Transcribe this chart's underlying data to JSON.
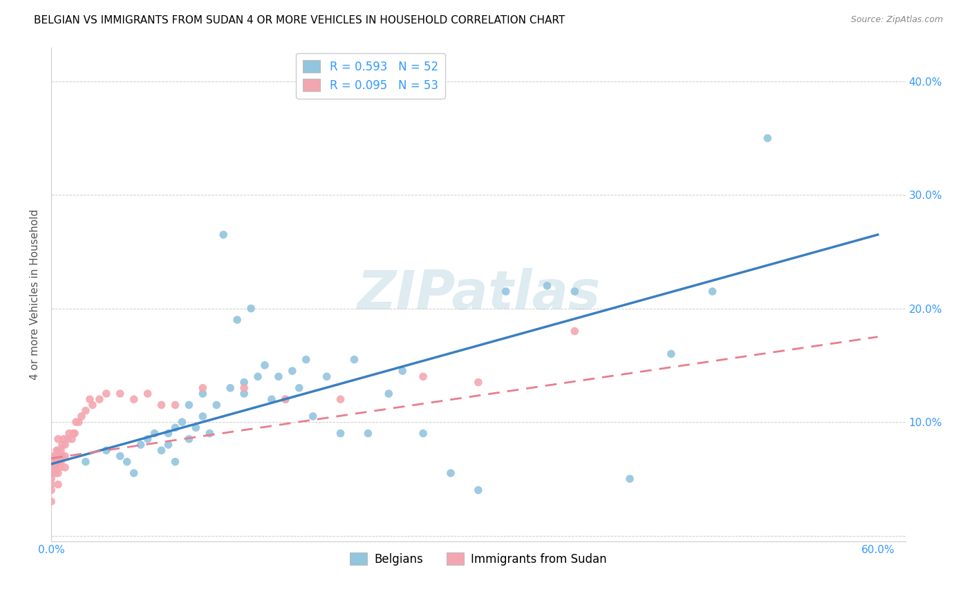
{
  "title": "BELGIAN VS IMMIGRANTS FROM SUDAN 4 OR MORE VEHICLES IN HOUSEHOLD CORRELATION CHART",
  "source": "Source: ZipAtlas.com",
  "ylabel": "4 or more Vehicles in Household",
  "xlim": [
    0.0,
    0.62
  ],
  "ylim": [
    -0.005,
    0.43
  ],
  "x_ticks": [
    0.0,
    0.1,
    0.2,
    0.3,
    0.4,
    0.5,
    0.6
  ],
  "y_ticks": [
    0.0,
    0.1,
    0.2,
    0.3,
    0.4
  ],
  "x_tick_labels": [
    "0.0%",
    "",
    "",
    "",
    "",
    "",
    "60.0%"
  ],
  "y_tick_labels_right": [
    "",
    "10.0%",
    "20.0%",
    "30.0%",
    "40.0%"
  ],
  "belgian_color": "#92C5DE",
  "sudan_color": "#F4A6B0",
  "belgian_line_color": "#3A7FC1",
  "sudan_line_color": "#E87D8E",
  "legend_R_belgian": "R = 0.593",
  "legend_N_belgian": "N = 52",
  "legend_R_sudan": "R = 0.095",
  "legend_N_sudan": "N = 53",
  "belgians_label": "Belgians",
  "sudan_label": "Immigrants from Sudan",
  "watermark": "ZIPatlas",
  "belgian_line_x0": 0.0,
  "belgian_line_y0": 0.063,
  "belgian_line_x1": 0.6,
  "belgian_line_y1": 0.265,
  "sudan_line_x0": 0.0,
  "sudan_line_y0": 0.068,
  "sudan_line_x1": 0.6,
  "sudan_line_y1": 0.175,
  "belgian_x": [
    0.025,
    0.04,
    0.05,
    0.055,
    0.06,
    0.065,
    0.07,
    0.075,
    0.08,
    0.085,
    0.085,
    0.09,
    0.09,
    0.095,
    0.1,
    0.1,
    0.105,
    0.11,
    0.11,
    0.115,
    0.12,
    0.125,
    0.13,
    0.135,
    0.14,
    0.14,
    0.145,
    0.15,
    0.155,
    0.16,
    0.165,
    0.17,
    0.175,
    0.18,
    0.185,
    0.19,
    0.2,
    0.21,
    0.22,
    0.23,
    0.245,
    0.255,
    0.27,
    0.29,
    0.31,
    0.33,
    0.36,
    0.38,
    0.42,
    0.45,
    0.48,
    0.52
  ],
  "belgian_y": [
    0.065,
    0.075,
    0.07,
    0.065,
    0.055,
    0.08,
    0.085,
    0.09,
    0.075,
    0.08,
    0.09,
    0.065,
    0.095,
    0.1,
    0.085,
    0.115,
    0.095,
    0.105,
    0.125,
    0.09,
    0.115,
    0.265,
    0.13,
    0.19,
    0.125,
    0.135,
    0.2,
    0.14,
    0.15,
    0.12,
    0.14,
    0.12,
    0.145,
    0.13,
    0.155,
    0.105,
    0.14,
    0.09,
    0.155,
    0.09,
    0.125,
    0.145,
    0.09,
    0.055,
    0.04,
    0.215,
    0.22,
    0.215,
    0.05,
    0.16,
    0.215,
    0.35
  ],
  "sudan_x": [
    0.0,
    0.0,
    0.0,
    0.0,
    0.0,
    0.0,
    0.0,
    0.0,
    0.003,
    0.003,
    0.003,
    0.004,
    0.004,
    0.005,
    0.005,
    0.005,
    0.005,
    0.005,
    0.006,
    0.006,
    0.007,
    0.007,
    0.008,
    0.008,
    0.009,
    0.01,
    0.01,
    0.01,
    0.012,
    0.013,
    0.015,
    0.016,
    0.017,
    0.018,
    0.02,
    0.022,
    0.025,
    0.028,
    0.03,
    0.035,
    0.04,
    0.05,
    0.06,
    0.07,
    0.08,
    0.09,
    0.11,
    0.14,
    0.17,
    0.21,
    0.27,
    0.31,
    0.38
  ],
  "sudan_y": [
    0.03,
    0.04,
    0.045,
    0.05,
    0.055,
    0.06,
    0.065,
    0.07,
    0.055,
    0.06,
    0.065,
    0.07,
    0.075,
    0.045,
    0.055,
    0.065,
    0.075,
    0.085,
    0.06,
    0.07,
    0.065,
    0.075,
    0.07,
    0.08,
    0.085,
    0.06,
    0.07,
    0.08,
    0.085,
    0.09,
    0.085,
    0.09,
    0.09,
    0.1,
    0.1,
    0.105,
    0.11,
    0.12,
    0.115,
    0.12,
    0.125,
    0.125,
    0.12,
    0.125,
    0.115,
    0.115,
    0.13,
    0.13,
    0.12,
    0.12,
    0.14,
    0.135,
    0.18
  ]
}
